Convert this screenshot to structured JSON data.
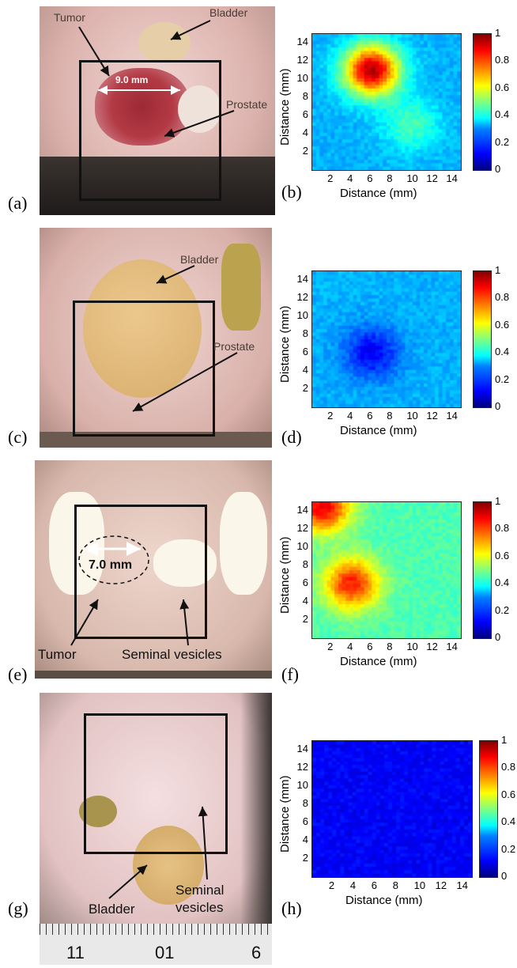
{
  "panels": {
    "a": "(a)",
    "b": "(b)",
    "c": "(c)",
    "d": "(d)",
    "e": "(e)",
    "f": "(f)",
    "g": "(g)",
    "h": "(h)"
  },
  "photo_a": {
    "tumor": "Tumor",
    "bladder": "Bladder",
    "prostate": "Prostate",
    "measure": "9.0 mm"
  },
  "photo_c": {
    "bladder": "Bladder",
    "prostate": "Prostate"
  },
  "photo_e": {
    "measure": "7.0 mm",
    "tumor": "Tumor",
    "seminal": "Seminal vesicles"
  },
  "photo_g": {
    "bladder": "Bladder",
    "seminal_1": "Seminal",
    "seminal_2": "vesicles",
    "ruler_labels": [
      "11",
      "01",
      "6"
    ]
  },
  "axes": {
    "xlabel": "Distance (mm)",
    "ylabel": "Distance (mm)",
    "xticks": [
      "2",
      "4",
      "6",
      "8",
      "10",
      "12",
      "14"
    ],
    "yticks": [
      "2",
      "4",
      "6",
      "8",
      "10",
      "12",
      "14"
    ],
    "cticks": [
      "0",
      "0.2",
      "0.4",
      "0.6",
      "0.8",
      "1"
    ]
  },
  "chart_data": [
    {
      "type": "heatmap",
      "panel": "b",
      "xlim": [
        0,
        15
      ],
      "ylim": [
        0,
        15
      ],
      "clim": [
        0,
        1
      ],
      "colormap": "jet",
      "description_hotspots": [
        {
          "x": 6,
          "y": 11,
          "value": 0.95
        },
        {
          "x": 10,
          "y": 5,
          "value": 0.45
        }
      ],
      "background": 0.3
    },
    {
      "type": "heatmap",
      "panel": "d",
      "xlim": [
        0,
        15
      ],
      "ylim": [
        0,
        15
      ],
      "clim": [
        0,
        1
      ],
      "colormap": "jet",
      "description_hotspots": [
        {
          "x": 6,
          "y": 6,
          "value": 0.12
        }
      ],
      "background": 0.3
    },
    {
      "type": "heatmap",
      "panel": "f",
      "xlim": [
        0,
        15
      ],
      "ylim": [
        0,
        15
      ],
      "clim": [
        0,
        1
      ],
      "colormap": "jet",
      "description_hotspots": [
        {
          "x": 4,
          "y": 6,
          "value": 0.85
        },
        {
          "x": 1,
          "y": 14.5,
          "value": 0.9
        }
      ],
      "background": 0.45
    },
    {
      "type": "heatmap",
      "panel": "h",
      "xlim": [
        0,
        15
      ],
      "ylim": [
        0,
        15
      ],
      "clim": [
        0,
        1
      ],
      "colormap": "jet",
      "description_hotspots": [],
      "background": 0.12
    }
  ]
}
